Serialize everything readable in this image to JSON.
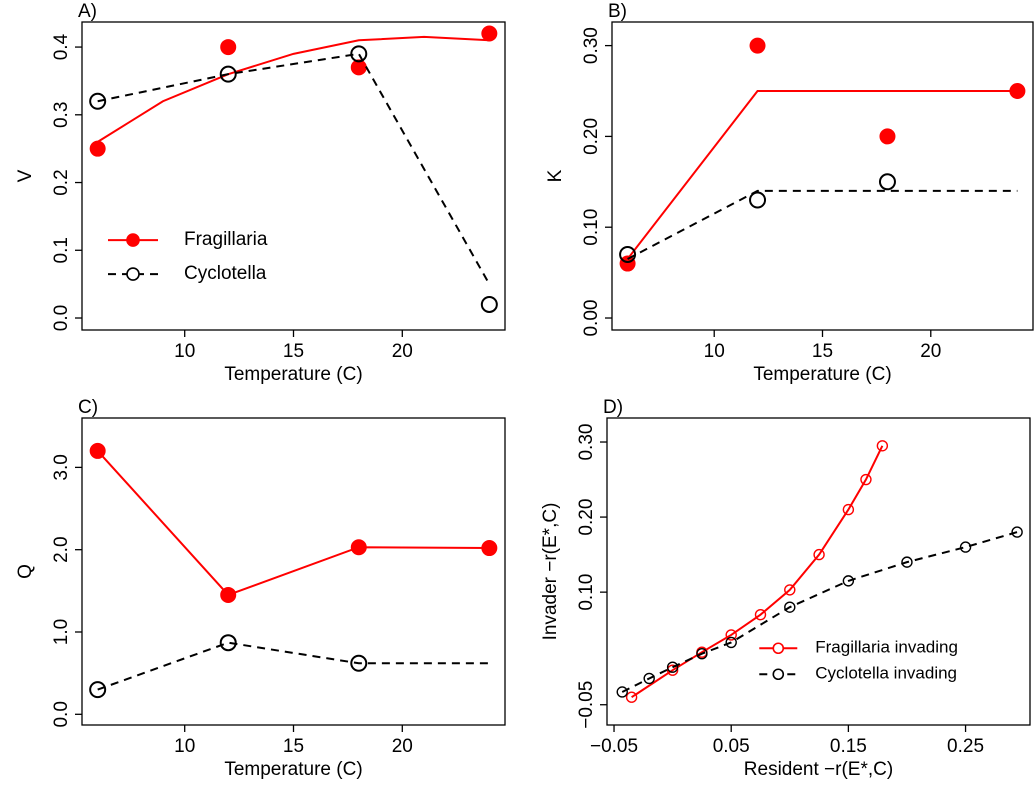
{
  "chart_data": [
    {
      "type": "line",
      "panel_label": "A)",
      "x_label": "Temperature (C)",
      "y_label": "V",
      "xlim": [
        5.28,
        24.72
      ],
      "ylim": [
        -0.0177,
        0.437
      ],
      "xticks": [
        10,
        15,
        20
      ],
      "yticks": [
        {
          "value": 0,
          "label": "0.0"
        },
        {
          "value": 0.1,
          "label": "0.1"
        },
        {
          "value": 0.2,
          "label": "0.2"
        },
        {
          "value": 0.3,
          "label": "0.3"
        },
        {
          "value": 0.4,
          "label": "0.4"
        }
      ],
      "legend": "left",
      "series": [
        {
          "name": "Fragillaria",
          "color": "#ff0000",
          "marker": "filled",
          "linestyle": "solid",
          "x": [
            6,
            12,
            18,
            24
          ],
          "values": [
            0.25,
            0.4,
            0.37,
            0.42
          ],
          "line_x": [
            6,
            9,
            12,
            15,
            18,
            21,
            24
          ],
          "line_values": [
            0.26,
            0.32,
            0.36,
            0.39,
            0.41,
            0.415,
            0.41
          ]
        },
        {
          "name": "Cyclotella",
          "color": "#000000",
          "marker": "open",
          "linestyle": "dashed",
          "x": [
            6,
            12,
            18,
            24
          ],
          "values": [
            0.32,
            0.36,
            0.39,
            0.02
          ],
          "line_x": [
            6,
            12,
            18,
            24
          ],
          "line_values": [
            0.32,
            0.36,
            0.39,
            0.05
          ]
        }
      ]
    },
    {
      "type": "line",
      "panel_label": "B)",
      "x_label": "Temperature (C)",
      "y_label": "K",
      "xlim": [
        5.28,
        24.72
      ],
      "ylim": [
        -0.0132,
        0.326
      ],
      "xticks": [
        10,
        15,
        20
      ],
      "yticks": [
        {
          "value": 0,
          "label": "0.00"
        },
        {
          "value": 0.1,
          "label": "0.10"
        },
        {
          "value": 0.2,
          "label": "0.20"
        },
        {
          "value": 0.3,
          "label": "0.30"
        }
      ],
      "series": [
        {
          "name": "Fragillaria",
          "color": "#ff0000",
          "marker": "filled",
          "linestyle": "solid",
          "x": [
            6,
            12,
            18,
            24
          ],
          "values": [
            0.06,
            0.3,
            0.2,
            0.25
          ],
          "line_x": [
            6,
            12,
            24
          ],
          "line_values": [
            0.065,
            0.25,
            0.25
          ]
        },
        {
          "name": "Cyclotella",
          "color": "#000000",
          "marker": "open",
          "linestyle": "dashed",
          "x": [
            6,
            12,
            18
          ],
          "values": [
            0.07,
            0.13,
            0.15
          ],
          "line_x": [
            6,
            12,
            24
          ],
          "line_values": [
            0.065,
            0.14,
            0.14
          ]
        }
      ]
    },
    {
      "type": "line",
      "panel_label": "C)",
      "x_label": "Temperature (C)",
      "y_label": "Q",
      "xlim": [
        5.28,
        24.72
      ],
      "ylim": [
        -0.13,
        3.6
      ],
      "xticks": [
        10,
        15,
        20
      ],
      "yticks": [
        {
          "value": 0,
          "label": "0.0"
        },
        {
          "value": 1,
          "label": "1.0"
        },
        {
          "value": 2,
          "label": "2.0"
        },
        {
          "value": 3,
          "label": "3.0"
        }
      ],
      "series": [
        {
          "name": "Fragillaria",
          "color": "#ff0000",
          "marker": "filled",
          "linestyle": "solid",
          "x": [
            6,
            12,
            18,
            24
          ],
          "values": [
            3.2,
            1.45,
            2.03,
            2.02
          ],
          "line_x": [
            6,
            12,
            18,
            24
          ],
          "line_values": [
            3.2,
            1.45,
            2.03,
            2.02
          ]
        },
        {
          "name": "Cyclotella",
          "color": "#000000",
          "marker": "open",
          "linestyle": "dashed",
          "x": [
            6,
            12,
            18
          ],
          "values": [
            0.3,
            0.87,
            0.62
          ],
          "line_x": [
            6,
            12,
            18,
            24
          ],
          "line_values": [
            0.3,
            0.87,
            0.62,
            0.62
          ]
        }
      ]
    },
    {
      "type": "line",
      "panel_label": "D)",
      "x_label": "Resident  −r(E*,C)",
      "y_label": "Invader  −r(E*,C)",
      "xlim": [
        -0.056,
        0.305
      ],
      "ylim": [
        -0.077,
        0.332
      ],
      "xticks": [
        {
          "value": -0.05,
          "label": "−0.05"
        },
        {
          "value": 0.05,
          "label": "0.05"
        },
        {
          "value": 0.15,
          "label": "0.15"
        },
        {
          "value": 0.25,
          "label": "0.25"
        }
      ],
      "yticks": [
        {
          "value": -0.05,
          "label": "−0.05"
        },
        {
          "value": 0.1,
          "label": "0.10"
        },
        {
          "value": 0.2,
          "label": "0.20"
        },
        {
          "value": 0.3,
          "label": "0.30"
        }
      ],
      "legend": "bottomright",
      "series": [
        {
          "name": "Fragillaria invading",
          "color": "#ff0000",
          "marker": "open",
          "linestyle": "solid",
          "x": [
            -0.035,
            0,
            0.025,
            0.05,
            0.075,
            0.1,
            0.125,
            0.15,
            0.165,
            0.179
          ],
          "values": [
            -0.04,
            -0.004,
            0.02,
            0.043,
            0.07,
            0.103,
            0.15,
            0.21,
            0.25,
            0.295
          ]
        },
        {
          "name": "Cyclotella invading",
          "color": "#000000",
          "marker": "open",
          "linestyle": "dashed",
          "x": [
            -0.043,
            -0.02,
            0,
            0.025,
            0.05,
            0.1,
            0.15,
            0.2,
            0.25,
            0.294
          ],
          "values": [
            -0.033,
            -0.015,
            0,
            0.018,
            0.033,
            0.08,
            0.115,
            0.14,
            0.16,
            0.18
          ]
        }
      ]
    }
  ]
}
